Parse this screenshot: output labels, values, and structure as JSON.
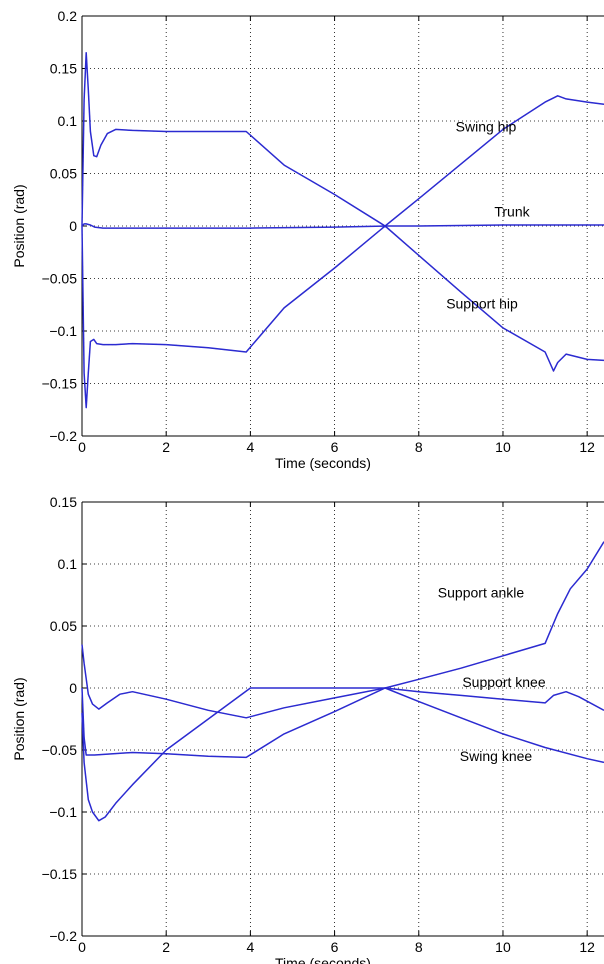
{
  "chart_data": [
    {
      "type": "line",
      "title": "",
      "xlabel": "Time (seconds)",
      "ylabel": "Position (rad)",
      "xlim": [
        0,
        12.4
      ],
      "ylim": [
        -0.2,
        0.2
      ],
      "xticks": [
        0,
        2,
        4,
        6,
        8,
        10,
        12
      ],
      "yticks": [
        -0.2,
        -0.15,
        -0.1,
        -0.05,
        0,
        0.05,
        0.1,
        0.15,
        0.2
      ],
      "ytick_labels": [
        "−0.2",
        "−0.15",
        "−0.1",
        "−0.05",
        "0",
        "0.05",
        "0.1",
        "0.15",
        "0.2"
      ],
      "grid": true,
      "line_color": "#2b2bd1",
      "reference_color": "#c0444e",
      "series": [
        {
          "name": "Swing hip",
          "x": [
            0,
            0.05,
            0.1,
            0.15,
            0.2,
            0.28,
            0.35,
            0.45,
            0.6,
            0.8,
            1.2,
            2,
            3,
            3.9,
            4.8,
            6,
            7.2,
            8,
            9,
            10,
            11,
            11.2,
            11.3,
            11.5,
            12,
            12.4
          ],
          "y": [
            0,
            0.12,
            0.165,
            0.13,
            0.09,
            0.067,
            0.066,
            0.077,
            0.088,
            0.092,
            0.091,
            0.09,
            0.09,
            0.09,
            0.058,
            0.03,
            0,
            0.026,
            0.059,
            0.092,
            0.118,
            0.122,
            0.124,
            0.121,
            0.118,
            0.116
          ]
        },
        {
          "name": "Trunk",
          "x": [
            0,
            0.05,
            0.1,
            0.2,
            0.3,
            0.5,
            1,
            2,
            4,
            6,
            7.2,
            8,
            10,
            12,
            12.4
          ],
          "y": [
            0,
            0.002,
            0.002,
            0.001,
            -0.001,
            -0.002,
            -0.002,
            -0.002,
            -0.002,
            -0.001,
            0,
            0,
            0.001,
            0.001,
            0.001
          ],
          "label_y": 0.014
        },
        {
          "name": "Support hip",
          "x": [
            0,
            0.05,
            0.1,
            0.15,
            0.2,
            0.28,
            0.35,
            0.5,
            0.8,
            1.2,
            2,
            3,
            3.9,
            4.8,
            6,
            7.2,
            8,
            9,
            10,
            11,
            11.2,
            11.3,
            11.5,
            12,
            12.4
          ],
          "y": [
            0,
            -0.14,
            -0.173,
            -0.14,
            -0.11,
            -0.108,
            -0.112,
            -0.113,
            -0.113,
            -0.112,
            -0.113,
            -0.116,
            -0.12,
            -0.078,
            -0.04,
            0,
            -0.028,
            -0.063,
            -0.097,
            -0.12,
            -0.138,
            -0.13,
            -0.122,
            -0.127,
            -0.128
          ],
          "label_y": -0.074
        }
      ]
    },
    {
      "type": "line",
      "title": "",
      "xlabel": "Time (seconds)",
      "ylabel": "Position (rad)",
      "xlim": [
        0,
        12.4
      ],
      "ylim": [
        -0.2,
        0.15
      ],
      "xticks": [
        0,
        2,
        4,
        6,
        8,
        10,
        12
      ],
      "yticks": [
        -0.2,
        -0.15,
        -0.1,
        -0.05,
        0,
        0.05,
        0.1,
        0.15
      ],
      "ytick_labels": [
        "−0.2",
        "−0.15",
        "−0.1",
        "−0.05",
        "0",
        "0.05",
        "0.1",
        "0.15"
      ],
      "grid": true,
      "line_color": "#2b2bd1",
      "reference_color": "#c0444e",
      "series": [
        {
          "name": "Support ankle",
          "x": [
            0,
            0.05,
            0.15,
            0.25,
            0.4,
            0.55,
            0.8,
            1.2,
            2,
            3,
            4,
            5,
            6,
            7.2,
            8,
            9,
            10,
            11,
            11.3,
            11.6,
            12,
            12.4
          ],
          "y": [
            -0.02,
            -0.06,
            -0.09,
            -0.1,
            -0.107,
            -0.104,
            -0.093,
            -0.078,
            -0.05,
            -0.025,
            0,
            0,
            0,
            0,
            0.007,
            0.016,
            0.026,
            0.036,
            0.06,
            0.08,
            0.096,
            0.118
          ],
          "label_y": 0.077
        },
        {
          "name": "Support knee",
          "x": [
            0,
            0.05,
            0.15,
            0.25,
            0.4,
            0.6,
            0.9,
            1.2,
            2,
            3,
            3.9,
            4.8,
            6,
            7.2,
            8,
            9,
            10,
            11,
            11.2,
            11.5,
            11.8,
            12.4
          ],
          "y": [
            0.035,
            0.02,
            -0.005,
            -0.013,
            -0.017,
            -0.012,
            -0.005,
            -0.003,
            -0.009,
            -0.018,
            -0.024,
            -0.016,
            -0.008,
            0,
            -0.003,
            -0.006,
            -0.009,
            -0.012,
            -0.006,
            -0.003,
            -0.007,
            -0.018
          ],
          "label_y": 0.005
        },
        {
          "name": "Swing knee",
          "x": [
            0,
            0.05,
            0.1,
            0.3,
            1.2,
            2,
            3,
            3.9,
            4.8,
            6,
            7.2,
            8,
            9,
            10,
            11,
            12,
            12.4
          ],
          "y": [
            0,
            -0.04,
            -0.054,
            -0.054,
            -0.052,
            -0.053,
            -0.055,
            -0.056,
            -0.037,
            -0.019,
            0,
            -0.011,
            -0.024,
            -0.037,
            -0.048,
            -0.057,
            -0.06
          ],
          "label_y": -0.055
        }
      ]
    }
  ]
}
